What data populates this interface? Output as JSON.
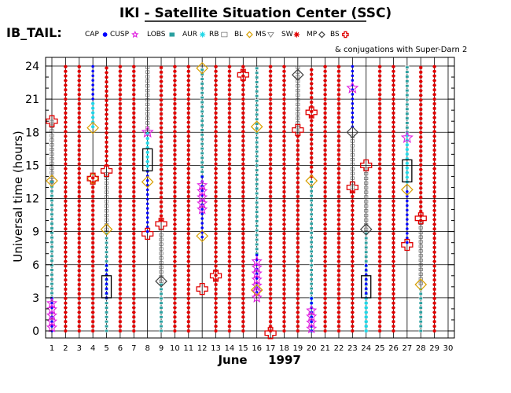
{
  "header": {
    "title": "IKI - Satellite Situation Center (SSC)",
    "dataset": "IB_TAIL:",
    "conjugation_note": "& conjugations with Super-Darn 2"
  },
  "legend": [
    {
      "label": "CAP",
      "marker": "filled-circle",
      "color": "#0000ff"
    },
    {
      "label": "CUSP",
      "marker": "star",
      "color": "#e020e0"
    },
    {
      "label": "LOBS",
      "marker": "small-square",
      "color": "#2aa0a0"
    },
    {
      "label": "AUR",
      "marker": "asterisk",
      "color": "#20d8e8"
    },
    {
      "label": "RB",
      "marker": "open-square",
      "color": "#555555"
    },
    {
      "label": "BL",
      "marker": "open-diamond",
      "color": "#d8a000"
    },
    {
      "label": "MS",
      "marker": "open-triangle-down",
      "color": "#777777"
    },
    {
      "label": "SW",
      "marker": "asterisk",
      "color": "#e00000"
    },
    {
      "label": "MP",
      "marker": "open-diamond",
      "color": "#444444"
    },
    {
      "label": "BS",
      "marker": "open-cross",
      "color": "#e00000"
    }
  ],
  "chart_data": {
    "type": "scatter",
    "xlabel": "June",
    "xlabel_year": "1997",
    "ylabel": "Universal time (hours)",
    "xlim": [
      1,
      30
    ],
    "ylim": [
      0,
      24
    ],
    "x_ticks": [
      1,
      2,
      3,
      4,
      5,
      6,
      7,
      8,
      9,
      10,
      11,
      12,
      13,
      14,
      15,
      16,
      17,
      18,
      19,
      20,
      21,
      22,
      23,
      24,
      25,
      26,
      27,
      28,
      29,
      30
    ],
    "y_ticks": [
      0,
      3,
      6,
      9,
      12,
      15,
      18,
      21,
      24
    ],
    "grid": true,
    "days": [
      {
        "day": 1,
        "segments": [
          {
            "region": "LOBS",
            "from": 3,
            "to": 13.5
          },
          {
            "region": "RB",
            "from": 13.5,
            "to": 19
          },
          {
            "region": "CAP",
            "from": 0,
            "to": 3
          }
        ],
        "markers": [
          {
            "type": "CUSP",
            "start": 0.3,
            "end": 2.8
          },
          {
            "type": "BS",
            "ut": 19
          },
          {
            "type": "BL",
            "ut": 13.6
          }
        ]
      },
      {
        "day": 2,
        "segments": [
          {
            "region": "SW",
            "from": 0,
            "to": 24
          }
        ],
        "markers": []
      },
      {
        "day": 4,
        "segments": [
          {
            "region": "CAP",
            "from": 18.5,
            "to": 24
          },
          {
            "region": "AUR",
            "from": 18.5,
            "to": 21
          },
          {
            "region": "SW",
            "from": 0,
            "to": 14
          }
        ],
        "markers": [
          {
            "type": "BL",
            "ut": 18.4
          },
          {
            "type": "BL",
            "ut": 13.8
          },
          {
            "type": "BS",
            "ut": 13.8
          }
        ]
      },
      {
        "day": 5,
        "segments": [
          {
            "region": "SW",
            "from": 15,
            "to": 24
          },
          {
            "region": "RB",
            "from": 9.2,
            "to": 14.5
          },
          {
            "region": "LOBS",
            "from": 0,
            "to": 9
          },
          {
            "region": "CAP",
            "from": 3,
            "to": 6
          }
        ],
        "markers": [
          {
            "type": "BS",
            "ut": 14.5
          },
          {
            "type": "BL",
            "ut": 9.2
          },
          {
            "type": "rect",
            "from": 3,
            "to": 5
          }
        ]
      },
      {
        "day": 8,
        "segments": [
          {
            "region": "RB",
            "from": 18,
            "to": 24
          },
          {
            "region": "AUR",
            "from": 14.5,
            "to": 18
          },
          {
            "region": "CAP",
            "from": 9,
            "to": 14.5
          }
        ],
        "markers": [
          {
            "type": "CUSP",
            "ut": 18
          },
          {
            "type": "BL",
            "ut": 13.5
          },
          {
            "type": "BS",
            "ut": 8.8
          },
          {
            "type": "rect",
            "from": 14.5,
            "to": 16.5
          }
        ]
      },
      {
        "day": 9,
        "segments": [
          {
            "region": "SW",
            "from": 10,
            "to": 24
          },
          {
            "region": "RB",
            "from": 4.5,
            "to": 9.5
          },
          {
            "region": "LOBS",
            "from": 0,
            "to": 4.5
          }
        ],
        "markers": [
          {
            "type": "BS",
            "ut": 9.7
          },
          {
            "type": "MP",
            "ut": 4.5
          }
        ]
      },
      {
        "day": 12,
        "segments": [
          {
            "region": "LOBS",
            "from": 14,
            "to": 24
          },
          {
            "region": "CAP",
            "from": 8.5,
            "to": 14
          }
        ],
        "markers": [
          {
            "type": "BL",
            "ut": 23.8
          },
          {
            "type": "CUSP",
            "start": 11,
            "end": 13.5
          },
          {
            "type": "BL",
            "ut": 8.6
          },
          {
            "type": "BS",
            "ut": 3.8
          }
        ]
      },
      {
        "day": 13,
        "segments": [
          {
            "region": "SW",
            "from": 0,
            "to": 24
          }
        ],
        "markers": [
          {
            "type": "BS",
            "ut": 5
          }
        ]
      },
      {
        "day": 15,
        "segments": [
          {
            "region": "SW",
            "from": 0,
            "to": 24
          }
        ],
        "markers": [
          {
            "type": "BS",
            "ut": 23.2
          }
        ]
      },
      {
        "day": 16,
        "segments": [
          {
            "region": "LOBS",
            "from": 7,
            "to": 24
          },
          {
            "region": "CAP",
            "from": 3.5,
            "to": 7
          }
        ],
        "markers": [
          {
            "type": "BL",
            "ut": 18.5
          },
          {
            "type": "CUSP",
            "start": 3,
            "end": 6.5
          },
          {
            "type": "BL",
            "ut": 3.7
          }
        ]
      },
      {
        "day": 17,
        "segments": [
          {
            "region": "SW",
            "from": 0,
            "to": 24
          }
        ],
        "markers": [
          {
            "type": "BS",
            "ut": -0.2
          }
        ]
      },
      {
        "day": 19,
        "segments": [
          {
            "region": "RB",
            "from": 18,
            "to": 24
          },
          {
            "region": "SW",
            "from": 0,
            "to": 18
          }
        ],
        "markers": [
          {
            "type": "MP",
            "ut": 23.2
          },
          {
            "type": "BS",
            "ut": 18.2
          }
        ]
      },
      {
        "day": 20,
        "segments": [
          {
            "region": "SW",
            "from": 14,
            "to": 24
          },
          {
            "region": "LOBS",
            "from": 3,
            "to": 13.5
          },
          {
            "region": "AUR",
            "from": 0,
            "to": 3
          },
          {
            "region": "CAP",
            "from": 0,
            "to": 3
          }
        ],
        "markers": [
          {
            "type": "BS",
            "ut": 19.8
          },
          {
            "type": "BL",
            "ut": 13.6
          },
          {
            "type": "CUSP",
            "start": 0.2,
            "end": 2
          }
        ]
      },
      {
        "day": 23,
        "segments": [
          {
            "region": "CAP",
            "from": 18.5,
            "to": 24
          },
          {
            "region": "RB",
            "from": 13,
            "to": 18
          },
          {
            "region": "SW",
            "from": 0,
            "to": 13
          }
        ],
        "markers": [
          {
            "type": "CUSP",
            "ut": 22
          },
          {
            "type": "MP",
            "ut": 18
          },
          {
            "type": "BS",
            "ut": 13
          }
        ]
      },
      {
        "day": 24,
        "segments": [
          {
            "region": "RB",
            "from": 9.2,
            "to": 15
          },
          {
            "region": "LOBS",
            "from": 0,
            "to": 9
          },
          {
            "region": "CAP",
            "from": 3,
            "to": 6
          },
          {
            "region": "AUR",
            "from": 0,
            "to": 3
          }
        ],
        "markers": [
          {
            "type": "BS",
            "ut": 15
          },
          {
            "type": "MP",
            "ut": 9.2
          },
          {
            "type": "rect",
            "from": 3,
            "to": 5
          }
        ]
      },
      {
        "day": 27,
        "segments": [
          {
            "region": "LOBS",
            "from": 18,
            "to": 24
          },
          {
            "region": "AUR",
            "from": 13.5,
            "to": 18
          },
          {
            "region": "CAP",
            "from": 8,
            "to": 13
          }
        ],
        "markers": [
          {
            "type": "CUSP",
            "ut": 17.5
          },
          {
            "type": "BL",
            "ut": 12.8
          },
          {
            "type": "BS",
            "ut": 7.8
          },
          {
            "type": "rect",
            "from": 13.5,
            "to": 15.5
          }
        ]
      },
      {
        "day": 28,
        "segments": [
          {
            "region": "SW",
            "from": 10,
            "to": 24
          },
          {
            "region": "RB",
            "from": 4.3,
            "to": 10
          },
          {
            "region": "LOBS",
            "from": 0,
            "to": 4
          }
        ],
        "markers": [
          {
            "type": "BS",
            "ut": 10.2
          },
          {
            "type": "BL",
            "ut": 4.2
          }
        ]
      }
    ]
  }
}
